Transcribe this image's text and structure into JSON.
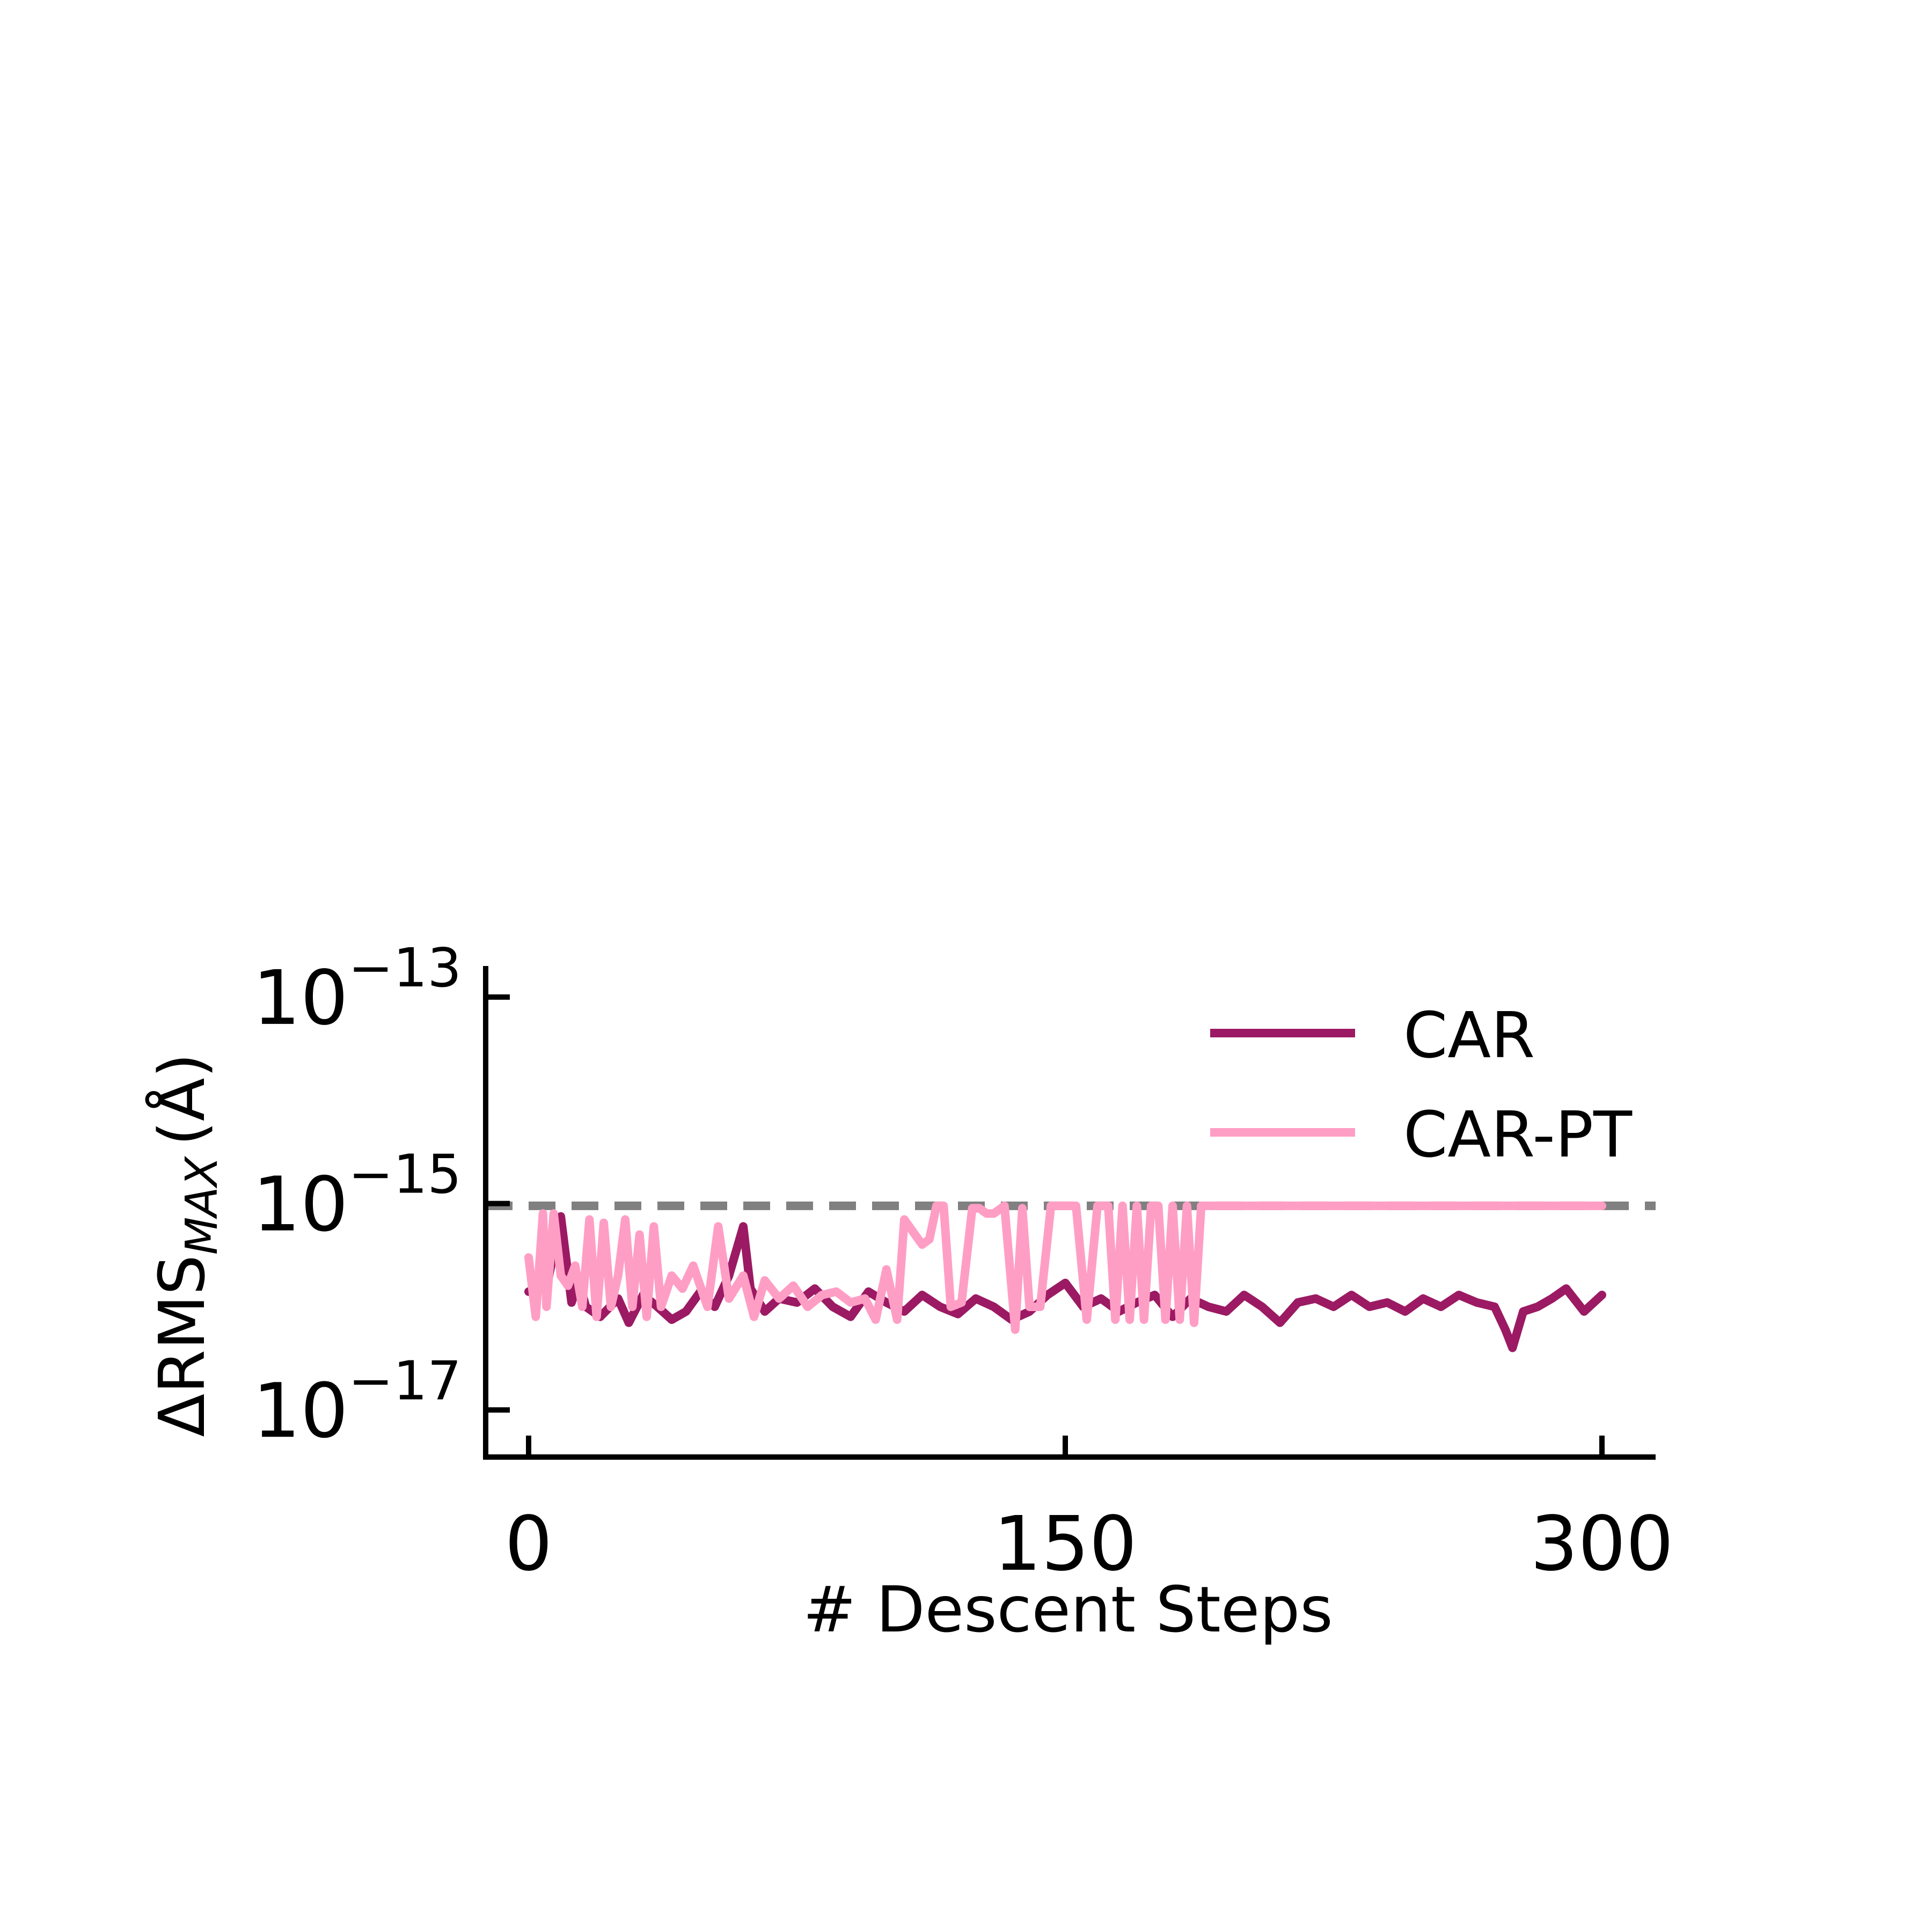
{
  "chart_data": {
    "type": "line",
    "xlabel": "# Descent Steps",
    "ylabel": "ΔRMS",
    "ylabel_subscript": "MAX",
    "ylabel_unit": "(Å)",
    "xlim": [
      -12,
      315
    ],
    "ylim": [
      3.5e-18,
      2e-13
    ],
    "yscale": "log",
    "xticks": [
      0,
      150,
      300
    ],
    "xtick_labels": [
      "0",
      "150",
      "300"
    ],
    "yticks": [
      1e-17,
      1e-15,
      1e-13
    ],
    "ytick_labels": [
      {
        "base": "10",
        "exp": "−17"
      },
      {
        "base": "10",
        "exp": "−15"
      },
      {
        "base": "10",
        "exp": "−13"
      }
    ],
    "reference_line": {
      "y": 9.5e-16,
      "style": "dashed",
      "color": "#808080"
    },
    "legend_position": "top-right",
    "series": [
      {
        "name": "CAR",
        "color": "#9b1a63",
        "x": [
          0,
          5,
          9,
          12,
          14,
          16,
          20,
          25,
          28,
          32,
          36,
          40,
          44,
          48,
          52,
          56,
          60,
          62,
          66,
          70,
          75,
          80,
          85,
          90,
          95,
          100,
          105,
          110,
          115,
          120,
          125,
          130,
          135,
          140,
          145,
          150,
          155,
          160,
          165,
          170,
          175,
          180,
          185,
          190,
          195,
          200,
          205,
          210,
          215,
          220,
          225,
          230,
          235,
          240,
          245,
          250,
          255,
          260,
          265,
          270,
          273,
          275,
          278,
          282,
          286,
          290,
          295,
          300
        ],
        "values": [
          1.4e-16,
          1.5e-16,
          7.5e-16,
          1.1e-16,
          1.8e-16,
          1e-16,
          8e-17,
          1.2e-16,
          7e-17,
          1.3e-16,
          1e-16,
          7.5e-17,
          9e-17,
          1.4e-16,
          1e-16,
          2e-16,
          6e-16,
          1.5e-16,
          9e-17,
          1.2e-16,
          1.1e-16,
          1.5e-16,
          1e-16,
          8e-17,
          1.4e-16,
          1.1e-16,
          9e-17,
          1.3e-16,
          1e-16,
          8.5e-17,
          1.2e-16,
          1e-16,
          7.5e-17,
          9e-17,
          1.3e-16,
          1.7e-16,
          1e-16,
          1.2e-16,
          9e-17,
          1.1e-16,
          1.3e-16,
          8e-17,
          1.2e-16,
          1e-16,
          9e-17,
          1.3e-16,
          1e-16,
          7e-17,
          1.1e-16,
          1.2e-16,
          1e-16,
          1.3e-16,
          1e-16,
          1.1e-16,
          9e-17,
          1.2e-16,
          1e-16,
          1.3e-16,
          1.1e-16,
          1e-16,
          6e-17,
          4e-17,
          9e-17,
          1e-16,
          1.2e-16,
          1.5e-16,
          9e-17,
          1.3e-16
        ]
      },
      {
        "name": "CAR-PT",
        "color": "#ff9ec5",
        "x": [
          0,
          2,
          4,
          5,
          7,
          9,
          11,
          13,
          15,
          17,
          19,
          21,
          23,
          25,
          27,
          29,
          31,
          33,
          35,
          37,
          40,
          43,
          46,
          50,
          53,
          56,
          60,
          63,
          66,
          70,
          74,
          78,
          82,
          86,
          90,
          94,
          97,
          100,
          103,
          105,
          108,
          110,
          112,
          114,
          116,
          118,
          121,
          124,
          126,
          128,
          130,
          133,
          136,
          138,
          140,
          143,
          146,
          148,
          150,
          153,
          156,
          159,
          162,
          164,
          166,
          168,
          170,
          172,
          174,
          176,
          178,
          180,
          182,
          184,
          186,
          188,
          190,
          195,
          200,
          205,
          210,
          215,
          220,
          225,
          230,
          235,
          240,
          245,
          250,
          255,
          260,
          265,
          268,
          270,
          272,
          275,
          278,
          281,
          284,
          287,
          290,
          295,
          300
        ],
        "values": [
          3e-16,
          8e-17,
          8e-16,
          1e-16,
          8e-16,
          2e-16,
          1.6e-16,
          2.5e-16,
          1e-16,
          7e-16,
          8e-17,
          6.5e-16,
          1e-16,
          2e-16,
          7e-16,
          1e-16,
          5e-16,
          8e-17,
          6e-16,
          1e-16,
          2e-16,
          1.5e-16,
          2.5e-16,
          1e-16,
          6e-16,
          1.2e-16,
          2e-16,
          8e-17,
          1.8e-16,
          1.2e-16,
          1.6e-16,
          1e-16,
          1.3e-16,
          1.4e-16,
          1.1e-16,
          1.2e-16,
          7.5e-17,
          2.3e-16,
          7.5e-17,
          7e-16,
          5e-16,
          4e-16,
          4.5e-16,
          9.5e-16,
          9.5e-16,
          1e-16,
          1.1e-16,
          9e-16,
          9e-16,
          8e-16,
          8e-16,
          9.5e-16,
          6e-17,
          9e-16,
          1e-16,
          1e-16,
          9.5e-16,
          9.5e-16,
          9.5e-16,
          9.5e-16,
          7.5e-17,
          9.5e-16,
          9.5e-16,
          7.5e-17,
          9.5e-16,
          7.5e-17,
          9.5e-16,
          7.5e-17,
          9.5e-16,
          9.5e-16,
          7.5e-17,
          9.5e-16,
          7.5e-17,
          9.5e-16,
          7e-17,
          9.5e-16,
          9.5e-16,
          9.5e-16,
          9.5e-16,
          9.5e-16,
          9.5e-16,
          9.5e-16,
          9.5e-16,
          9.5e-16,
          9.5e-16,
          9.5e-16,
          9.5e-16,
          9.5e-16,
          9.5e-16,
          9.5e-16,
          9.5e-16,
          9.5e-16,
          9.5e-16,
          9.5e-16,
          9.5e-16,
          9.5e-16,
          9.5e-16,
          9.5e-16,
          9.5e-16,
          9.5e-16,
          9.5e-16,
          9.5e-16,
          9.5e-16
        ]
      }
    ]
  }
}
